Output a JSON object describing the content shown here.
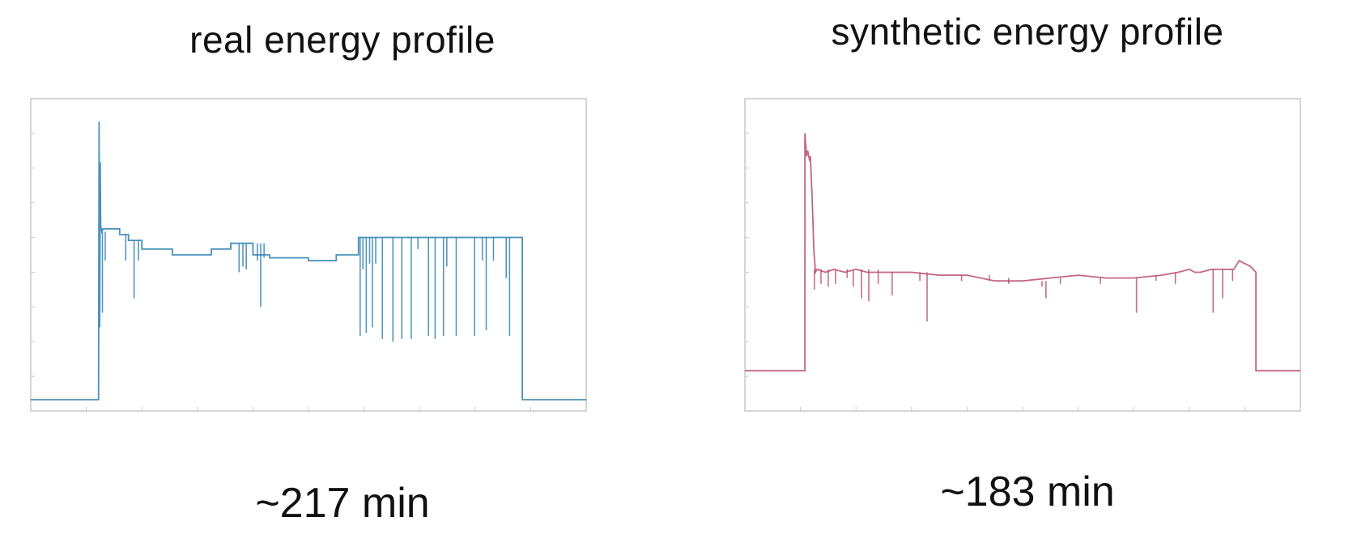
{
  "chart_data": [
    {
      "type": "line",
      "title": "real energy profile",
      "xlabel": "",
      "ylabel": "",
      "duration_label": "~217 min",
      "color": "#2a7fae",
      "grid": false,
      "legend": "none",
      "xlim": [
        0,
        100
      ],
      "ylim": [
        0,
        100
      ],
      "x_minor_ticks": 9,
      "y_minor_ticks": 8,
      "series": [
        {
          "x": [
            0,
            12.2,
            12.3,
            12.4,
            12.5,
            12.6,
            12.8,
            13.0,
            16.0,
            16.0,
            17.6,
            17.6,
            20.0,
            20.0,
            25.5,
            25.5,
            32.5,
            32.5,
            36.0,
            36.0,
            40.0,
            40.0,
            43.0,
            43.0,
            50.0,
            50.0,
            55.0,
            55.0,
            59.0,
            59.0,
            88.5,
            88.5,
            88.5,
            100
          ],
          "y": [
            0,
            0,
            96,
            25,
            82,
            60,
            58,
            59,
            59,
            57,
            57,
            55,
            55,
            52,
            52,
            50,
            50,
            52,
            52,
            54,
            54,
            50,
            50,
            49,
            49,
            48,
            48,
            50,
            50,
            56,
            56,
            25,
            0,
            0
          ]
        }
      ],
      "spikes": [
        {
          "x": 12.9,
          "y_top": 58,
          "y_bottom": 30
        },
        {
          "x": 13.4,
          "y_top": 58,
          "y_bottom": 48
        },
        {
          "x": 17.1,
          "y_top": 57,
          "y_bottom": 48
        },
        {
          "x": 18.6,
          "y_top": 55,
          "y_bottom": 35
        },
        {
          "x": 19.4,
          "y_top": 55,
          "y_bottom": 48
        },
        {
          "x": 37.5,
          "y_top": 54,
          "y_bottom": 44
        },
        {
          "x": 38.2,
          "y_top": 54,
          "y_bottom": 46
        },
        {
          "x": 38.8,
          "y_top": 54,
          "y_bottom": 45
        },
        {
          "x": 40.8,
          "y_top": 54,
          "y_bottom": 48
        },
        {
          "x": 41.4,
          "y_top": 54,
          "y_bottom": 32
        },
        {
          "x": 42.0,
          "y_top": 54,
          "y_bottom": 49
        },
        {
          "x": 59.3,
          "y_top": 56,
          "y_bottom": 22
        },
        {
          "x": 59.8,
          "y_top": 56,
          "y_bottom": 45
        },
        {
          "x": 60.4,
          "y_top": 56,
          "y_bottom": 23
        },
        {
          "x": 61.0,
          "y_top": 56,
          "y_bottom": 47
        },
        {
          "x": 61.5,
          "y_top": 56,
          "y_bottom": 25
        },
        {
          "x": 62.1,
          "y_top": 56,
          "y_bottom": 47
        },
        {
          "x": 63.3,
          "y_top": 56,
          "y_bottom": 21
        },
        {
          "x": 65.2,
          "y_top": 56,
          "y_bottom": 20
        },
        {
          "x": 66.8,
          "y_top": 56,
          "y_bottom": 21
        },
        {
          "x": 68.5,
          "y_top": 56,
          "y_bottom": 21
        },
        {
          "x": 69.7,
          "y_top": 56,
          "y_bottom": 52
        },
        {
          "x": 71.6,
          "y_top": 56,
          "y_bottom": 22
        },
        {
          "x": 72.8,
          "y_top": 56,
          "y_bottom": 21
        },
        {
          "x": 74.3,
          "y_top": 56,
          "y_bottom": 22
        },
        {
          "x": 74.9,
          "y_top": 56,
          "y_bottom": 46
        },
        {
          "x": 76.6,
          "y_top": 56,
          "y_bottom": 22
        },
        {
          "x": 79.9,
          "y_top": 56,
          "y_bottom": 22
        },
        {
          "x": 81.3,
          "y_top": 56,
          "y_bottom": 48
        },
        {
          "x": 82.0,
          "y_top": 56,
          "y_bottom": 24
        },
        {
          "x": 83.3,
          "y_top": 56,
          "y_bottom": 48
        },
        {
          "x": 85.6,
          "y_top": 56,
          "y_bottom": 42
        },
        {
          "x": 86.2,
          "y_top": 56,
          "y_bottom": 22
        }
      ]
    },
    {
      "type": "line",
      "title": "synthetic energy profile",
      "xlabel": "",
      "ylabel": "",
      "duration_label": "~183 min",
      "color": "#b84a72",
      "grid": false,
      "legend": "none",
      "xlim": [
        0,
        100
      ],
      "ylim": [
        0,
        100
      ],
      "x_minor_ticks": 9,
      "y_minor_ticks": 8,
      "series": [
        {
          "x": [
            0,
            10.8,
            10.8,
            11.1,
            11.3,
            11.6,
            11.8,
            12.1,
            12.4,
            12.7,
            13.0,
            14.5,
            16.0,
            18.0,
            20.0,
            22.0,
            25.0,
            30.0,
            35.0,
            40.0,
            45.0,
            50.0,
            55.0,
            60.0,
            65.0,
            70.0,
            75.0,
            78.0,
            80.0,
            81.0,
            82.0,
            84.0,
            88.0,
            89.0,
            91.0,
            92.0,
            92.0,
            100
          ],
          "y": [
            10,
            10,
            92,
            84,
            86,
            83,
            84,
            70,
            52,
            44,
            45,
            44,
            45,
            44,
            45,
            44,
            44,
            44,
            43,
            43,
            41,
            41,
            42,
            43,
            42,
            42,
            43,
            44,
            45,
            44,
            44,
            45,
            45,
            48,
            46,
            44,
            10,
            10
          ]
        }
      ],
      "spikes": [
        {
          "x": 12.5,
          "y_top": 45,
          "y_bottom": 38
        },
        {
          "x": 13.7,
          "y_top": 45,
          "y_bottom": 40
        },
        {
          "x": 15.0,
          "y_top": 45,
          "y_bottom": 39
        },
        {
          "x": 16.3,
          "y_top": 45,
          "y_bottom": 40
        },
        {
          "x": 18.4,
          "y_top": 45,
          "y_bottom": 42
        },
        {
          "x": 19.5,
          "y_top": 45,
          "y_bottom": 39
        },
        {
          "x": 21.0,
          "y_top": 45,
          "y_bottom": 35
        },
        {
          "x": 22.3,
          "y_top": 45,
          "y_bottom": 34
        },
        {
          "x": 24.0,
          "y_top": 45,
          "y_bottom": 40
        },
        {
          "x": 26.5,
          "y_top": 44,
          "y_bottom": 36
        },
        {
          "x": 31.5,
          "y_top": 44,
          "y_bottom": 41
        },
        {
          "x": 32.8,
          "y_top": 44,
          "y_bottom": 27
        },
        {
          "x": 39.0,
          "y_top": 43,
          "y_bottom": 41
        },
        {
          "x": 44.0,
          "y_top": 43,
          "y_bottom": 41
        },
        {
          "x": 47.5,
          "y_top": 42,
          "y_bottom": 40
        },
        {
          "x": 53.5,
          "y_top": 41,
          "y_bottom": 39
        },
        {
          "x": 54.2,
          "y_top": 41,
          "y_bottom": 35
        },
        {
          "x": 56.8,
          "y_top": 42,
          "y_bottom": 40
        },
        {
          "x": 64.0,
          "y_top": 42,
          "y_bottom": 40
        },
        {
          "x": 70.5,
          "y_top": 42,
          "y_bottom": 30
        },
        {
          "x": 74.0,
          "y_top": 43,
          "y_bottom": 41
        },
        {
          "x": 77.5,
          "y_top": 44,
          "y_bottom": 40
        },
        {
          "x": 84.3,
          "y_top": 45,
          "y_bottom": 30
        },
        {
          "x": 86.0,
          "y_top": 45,
          "y_bottom": 35
        },
        {
          "x": 87.8,
          "y_top": 45,
          "y_bottom": 41
        }
      ]
    }
  ]
}
